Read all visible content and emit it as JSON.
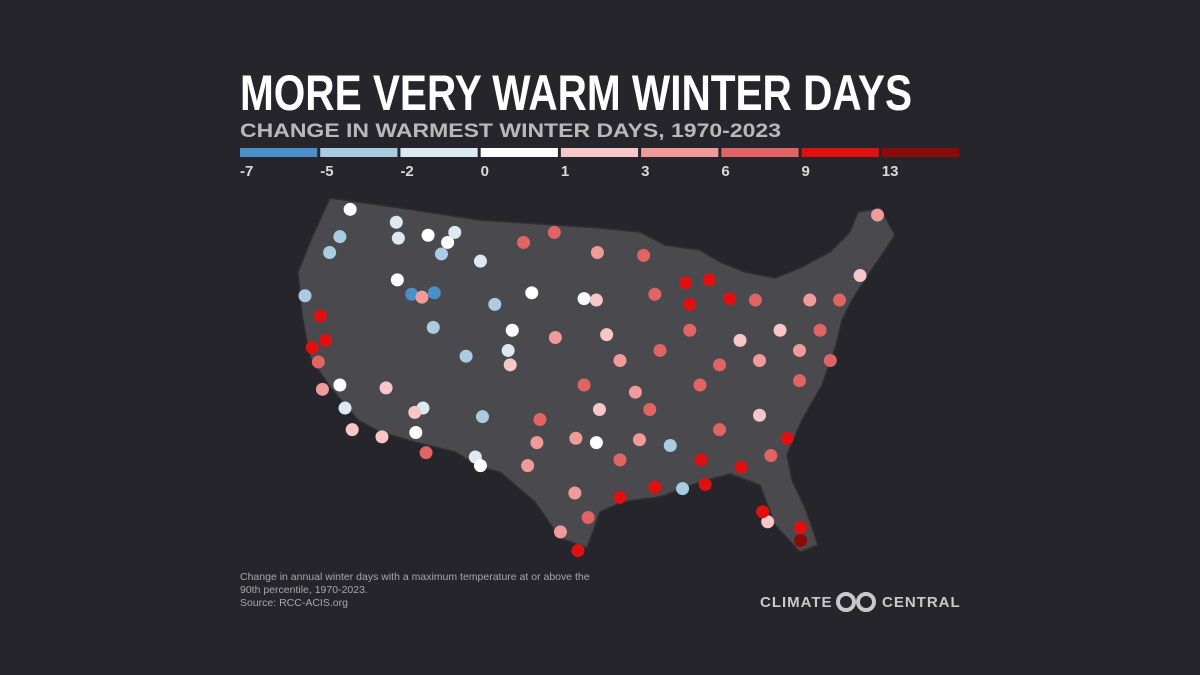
{
  "title": "MORE VERY WARM WINTER DAYS",
  "subtitle": "CHANGE IN WARMEST WINTER DAYS, 1970-2023",
  "legend": {
    "ticks": [
      -7,
      -5,
      -2,
      0,
      1,
      3,
      6,
      9,
      13
    ],
    "colors": [
      "#4a90c8",
      "#a9cce3",
      "#dce9f3",
      "#ffffff",
      "#f7c6c6",
      "#f09a9a",
      "#e06464",
      "#e01010",
      "#8b0a0a"
    ]
  },
  "stations": [
    [
      -120.1,
      48.7,
      "#ffffff"
    ],
    [
      -121.1,
      46.8,
      "#a9cce3"
    ],
    [
      -122.1,
      45.7,
      "#a9cce3"
    ],
    [
      -124.5,
      42.7,
      "#a9cce3"
    ],
    [
      -123.0,
      41.3,
      "#e01010"
    ],
    [
      -122.5,
      39.6,
      "#e01010"
    ],
    [
      -123.8,
      39.1,
      "#e01010"
    ],
    [
      -123.2,
      38.1,
      "#e06464"
    ],
    [
      -121.1,
      36.5,
      "#ffffff"
    ],
    [
      -122.8,
      36.2,
      "#f09a9a"
    ],
    [
      -120.6,
      34.9,
      "#dce9f3"
    ],
    [
      -119.9,
      33.4,
      "#f7c6c6"
    ],
    [
      -117.0,
      32.9,
      "#f7c6c6"
    ],
    [
      -116.6,
      36.3,
      "#f7c6c6"
    ],
    [
      -115.6,
      47.8,
      "#dce9f3"
    ],
    [
      -115.4,
      46.7,
      "#dce9f3"
    ],
    [
      -112.5,
      46.9,
      "#ffffff"
    ],
    [
      -110.6,
      46.4,
      "#ffffff"
    ],
    [
      -109.9,
      47.1,
      "#dce9f3"
    ],
    [
      -111.2,
      45.6,
      "#a9cce3"
    ],
    [
      -107.4,
      45.1,
      "#dce9f3"
    ],
    [
      -115.5,
      43.8,
      "#ffffff"
    ],
    [
      -114.1,
      42.8,
      "#4a90c8"
    ],
    [
      -113.1,
      42.6,
      "#f09a9a"
    ],
    [
      -111.9,
      42.9,
      "#4a90c8"
    ],
    [
      -112.0,
      40.5,
      "#a9cce3"
    ],
    [
      -106.0,
      42.1,
      "#a9cce3"
    ],
    [
      -102.4,
      42.9,
      "#ffffff"
    ],
    [
      -104.3,
      40.3,
      "#ffffff"
    ],
    [
      -104.7,
      38.9,
      "#dce9f3"
    ],
    [
      -104.5,
      37.9,
      "#f7c6c6"
    ],
    [
      -108.8,
      38.5,
      "#a9cce3"
    ],
    [
      -113.0,
      34.9,
      "#dce9f3"
    ],
    [
      -113.8,
      34.6,
      "#f7c6c6"
    ],
    [
      -113.7,
      33.2,
      "#ffffff"
    ],
    [
      -112.7,
      31.8,
      "#e06464"
    ],
    [
      -107.2,
      34.3,
      "#a9cce3"
    ],
    [
      -107.9,
      31.5,
      "#dce9f3"
    ],
    [
      -107.4,
      30.9,
      "#ffffff"
    ],
    [
      -103.2,
      46.4,
      "#e06464"
    ],
    [
      -100.2,
      47.1,
      "#e06464"
    ],
    [
      -96.0,
      45.7,
      "#f09a9a"
    ],
    [
      -97.3,
      42.5,
      "#ffffff"
    ],
    [
      -96.1,
      42.4,
      "#f7c6c6"
    ],
    [
      -100.1,
      39.8,
      "#f09a9a"
    ],
    [
      -95.1,
      40.0,
      "#f7c6c6"
    ],
    [
      -97.3,
      36.5,
      "#e06464"
    ],
    [
      -101.6,
      34.1,
      "#e06464"
    ],
    [
      -101.9,
      32.5,
      "#f09a9a"
    ],
    [
      -102.8,
      30.9,
      "#f09a9a"
    ],
    [
      -98.1,
      32.8,
      "#f09a9a"
    ],
    [
      -96.1,
      32.5,
      "#ffffff"
    ],
    [
      -98.2,
      29.0,
      "#f09a9a"
    ],
    [
      -96.9,
      27.3,
      "#e06464"
    ],
    [
      -97.9,
      25.0,
      "#e01010"
    ],
    [
      -99.6,
      26.3,
      "#f09a9a"
    ],
    [
      -93.8,
      28.7,
      "#e01010"
    ],
    [
      -90.4,
      29.4,
      "#e01010"
    ],
    [
      -87.7,
      29.3,
      "#a9cce3"
    ],
    [
      -85.5,
      29.6,
      "#e01010"
    ],
    [
      -85.9,
      31.3,
      "#e01010"
    ],
    [
      -82.0,
      30.8,
      "#e01010"
    ],
    [
      -79.1,
      31.6,
      "#e06464"
    ],
    [
      -77.5,
      32.8,
      "#e01010"
    ],
    [
      -76.2,
      26.6,
      "#e01010"
    ],
    [
      -76.2,
      25.7,
      "#8b0a0a"
    ],
    [
      -79.4,
      27.0,
      "#f7c6c6"
    ],
    [
      -79.9,
      27.7,
      "#e01010"
    ],
    [
      -87.4,
      43.6,
      "#e01010"
    ],
    [
      -85.1,
      43.8,
      "#e01010"
    ],
    [
      -83.1,
      42.5,
      "#e01010"
    ],
    [
      -87.0,
      42.1,
      "#e01010"
    ],
    [
      -90.4,
      42.8,
      "#e06464"
    ],
    [
      -91.5,
      45.5,
      "#e06464"
    ],
    [
      -89.9,
      38.9,
      "#e06464"
    ],
    [
      -86.0,
      36.5,
      "#e06464"
    ],
    [
      -92.3,
      36.0,
      "#f09a9a"
    ],
    [
      -88.9,
      32.3,
      "#a9cce3"
    ],
    [
      -84.1,
      33.4,
      "#e06464"
    ],
    [
      -80.2,
      34.4,
      "#f7c6c6"
    ],
    [
      -76.3,
      36.8,
      "#e06464"
    ],
    [
      -74.3,
      40.3,
      "#e06464"
    ],
    [
      -72.4,
      42.4,
      "#e06464"
    ],
    [
      -70.4,
      44.1,
      "#f7c6c6"
    ],
    [
      -68.7,
      48.3,
      "#f09a9a"
    ],
    [
      -75.3,
      42.4,
      "#f09a9a"
    ],
    [
      -78.2,
      40.3,
      "#f7c6c6"
    ],
    [
      -80.2,
      38.2,
      "#f09a9a"
    ],
    [
      -82.1,
      39.6,
      "#f7c6c6"
    ],
    [
      -84.1,
      37.9,
      "#e06464"
    ],
    [
      -87.0,
      40.3,
      "#e06464"
    ],
    [
      -93.8,
      38.2,
      "#f09a9a"
    ],
    [
      -90.9,
      34.8,
      "#e06464"
    ],
    [
      -95.8,
      34.8,
      "#f7c6c6"
    ],
    [
      -93.8,
      31.3,
      "#e06464"
    ],
    [
      -91.9,
      32.7,
      "#f09a9a"
    ],
    [
      -80.6,
      42.4,
      "#e06464"
    ],
    [
      -76.3,
      38.9,
      "#f09a9a"
    ],
    [
      -73.3,
      38.2,
      "#e06464"
    ]
  ],
  "footnote": [
    "Change in annual winter days with a maximum temperature at or above the",
    "90th percentile, 1970-2023.",
    "Source: RCC-ACIS.org"
  ],
  "logo": {
    "left": "CLIMATE",
    "right": "CENTRAL"
  }
}
